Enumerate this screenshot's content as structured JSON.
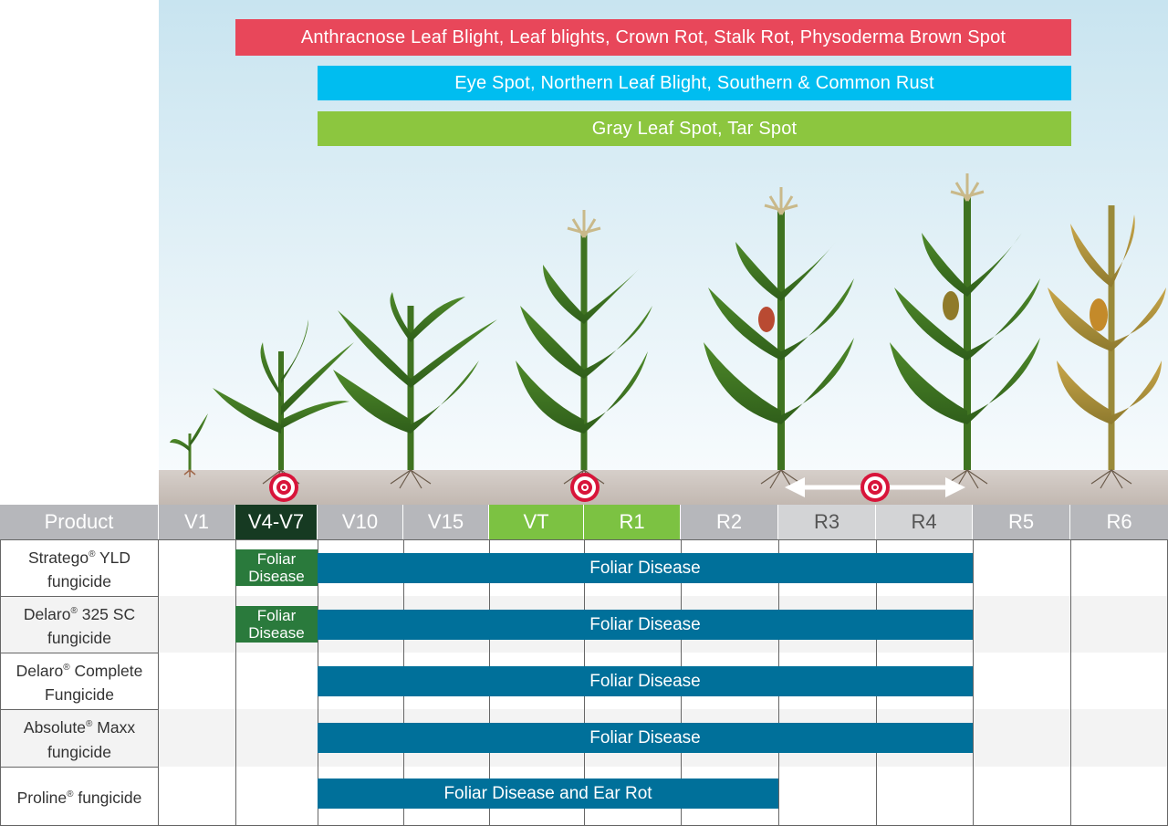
{
  "disease_bands": [
    {
      "label": "Anthracnose Leaf Blight, Leaf blights, Crown Rot, Stalk Rot, Physoderma Brown Spot",
      "color": "#e8475a"
    },
    {
      "label": "Eye Spot, Northern Leaf Blight, Southern & Common Rust",
      "color": "#00bdf0"
    },
    {
      "label": "Gray Leaf Spot, Tar Spot",
      "color": "#8cc63f"
    }
  ],
  "header": {
    "product_label": "Product",
    "stages": [
      "V1",
      "V4-V7",
      "V10",
      "V15",
      "VT",
      "R1",
      "R2",
      "R3",
      "R4",
      "R5",
      "R6"
    ],
    "stage_colors": {
      "default": "#b6b7bb",
      "highlight_dark": "#163a22",
      "highlight_green": "#7cc242",
      "light": "#d3d4d6"
    }
  },
  "products": [
    {
      "name": "Stratego",
      "mark": "®",
      "suffix": " YLD",
      "line2": "fungicide",
      "early": "Foliar Disease",
      "main": "Foliar Disease"
    },
    {
      "name": "Delaro",
      "mark": "®",
      "suffix": " 325 SC",
      "line2": "fungicide",
      "early": "Foliar Disease",
      "main": "Foliar Disease"
    },
    {
      "name": "Delaro",
      "mark": "®",
      "suffix": " Complete",
      "line2": "Fungicide",
      "early": "",
      "main": "Foliar Disease"
    },
    {
      "name": "Absolute",
      "mark": "®",
      "suffix": " Maxx",
      "line2": "fungicide",
      "early": "",
      "main": "Foliar Disease"
    },
    {
      "name": "Proline",
      "mark": "®",
      "suffix": " fungicide",
      "line2": "",
      "early": "",
      "main": "Foliar Disease and Ear Rot"
    }
  ],
  "icons": [
    "target-icon",
    "double-arrow-icon",
    "corn-plant-icon"
  ]
}
